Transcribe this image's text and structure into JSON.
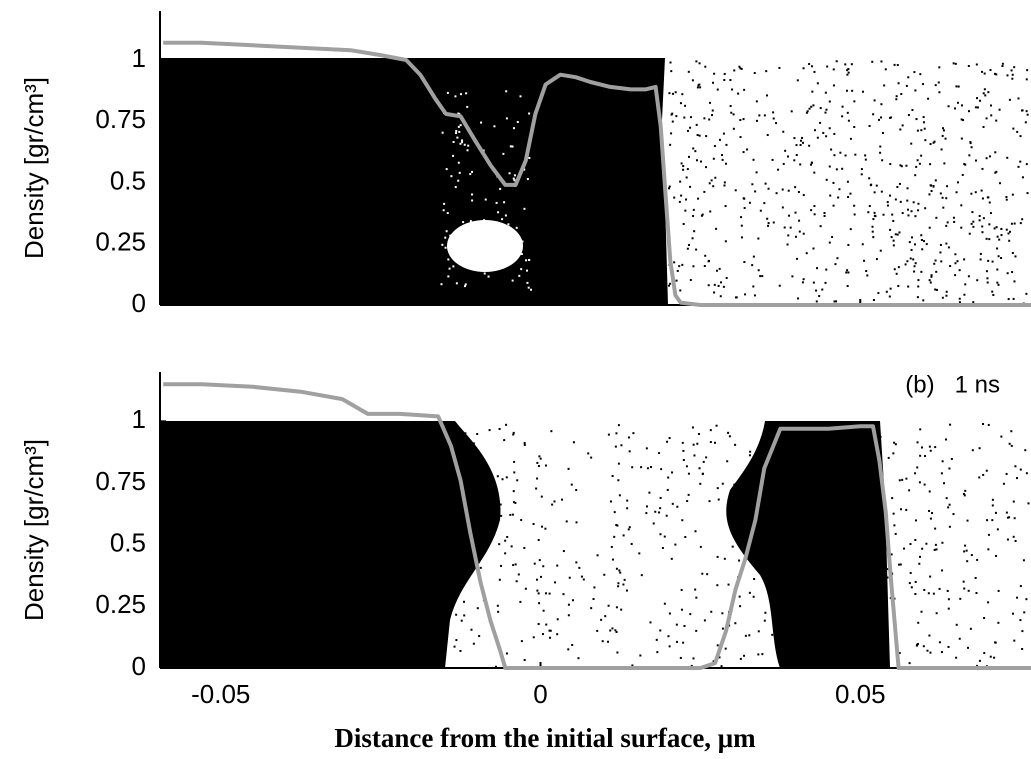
{
  "chart_data": [
    {
      "type": "line",
      "ylabel": "Density [gr/cm³]",
      "x": [
        -0.059,
        -0.053,
        -0.045,
        -0.0375,
        -0.0297,
        -0.025,
        -0.021,
        -0.0188,
        -0.0164,
        -0.0148,
        -0.0125,
        -0.0102,
        -0.0078,
        -0.0055,
        -0.0039,
        -0.0023,
        -0.0008,
        0.0008,
        0.0031,
        0.0055,
        0.0078,
        0.0109,
        0.0141,
        0.0164,
        0.018,
        0.0188,
        0.0195,
        0.0203,
        0.0211,
        0.0219,
        0.025,
        0.077
      ],
      "series": [
        {
          "color": "#a0a0a0",
          "values": [
            1.07,
            1.07,
            1.06,
            1.05,
            1.04,
            1.02,
            1.0,
            0.94,
            0.84,
            0.78,
            0.77,
            0.67,
            0.57,
            0.49,
            0.49,
            0.59,
            0.78,
            0.9,
            0.94,
            0.93,
            0.91,
            0.89,
            0.88,
            0.88,
            0.89,
            0.73,
            0.47,
            0.18,
            0.04,
            0.01,
            0,
            0
          ]
        }
      ],
      "xlim": [
        -0.0595,
        0.0767
      ],
      "ylim": [
        0,
        1.2
      ],
      "yticks": [
        0,
        0.25,
        0.5,
        0.75,
        1
      ],
      "xticks": [
        0.05
      ]
    },
    {
      "type": "line",
      "ylabel": "Density [gr/cm³]",
      "annotation": "(b)   1 ns",
      "xlabel": "Distance from the initial surface, μm",
      "x": [
        -0.059,
        -0.053,
        -0.045,
        -0.0375,
        -0.031,
        -0.027,
        -0.022,
        -0.016,
        -0.014,
        -0.0125,
        -0.011,
        -0.0094,
        -0.0078,
        -0.0063,
        -0.0055,
        0.025,
        0.0273,
        0.029,
        0.0305,
        0.032,
        0.0336,
        0.035,
        0.0375,
        0.041,
        0.045,
        0.05,
        0.052,
        0.053,
        0.054,
        0.0547,
        0.0555,
        0.056,
        0.077
      ],
      "series": [
        {
          "color": "#a0a0a0",
          "values": [
            1.15,
            1.15,
            1.14,
            1.12,
            1.09,
            1.03,
            1.03,
            1.02,
            0.9,
            0.76,
            0.55,
            0.35,
            0.19,
            0.07,
            0,
            0,
            0.02,
            0.15,
            0.32,
            0.44,
            0.6,
            0.81,
            0.97,
            0.97,
            0.97,
            0.98,
            0.98,
            0.84,
            0.63,
            0.39,
            0.15,
            0,
            0
          ]
        }
      ],
      "xlim": [
        -0.0595,
        0.0767
      ],
      "ylim": [
        0,
        1.2
      ],
      "yticks": [
        0,
        0.25,
        0.5,
        0.75,
        1
      ],
      "xticks": [
        -0.05,
        0,
        0.05
      ]
    }
  ]
}
